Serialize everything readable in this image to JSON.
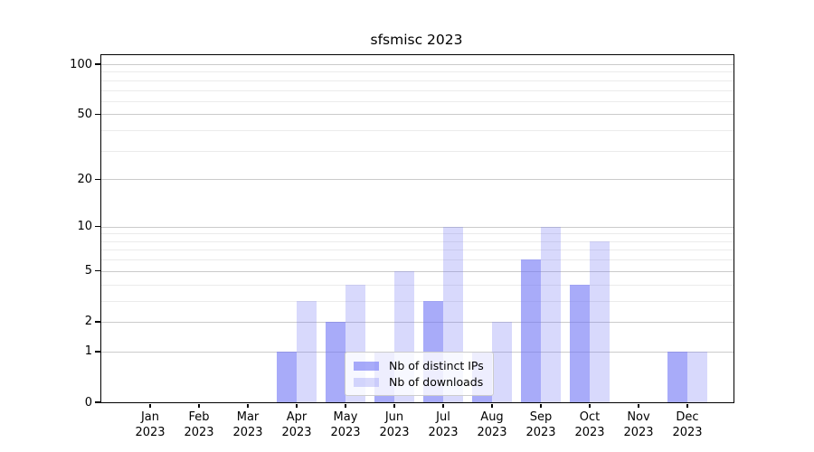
{
  "chart_data": {
    "type": "bar",
    "title": "sfsmisc 2023",
    "scale": "log1p",
    "ylim": [
      0,
      110
    ],
    "xlabel": "",
    "ylabel": "",
    "grid": {
      "major_color": "#cbcbcb",
      "minor_color": "#ebebeb",
      "minor_values": [
        3,
        4,
        6,
        7,
        8,
        9,
        30,
        40,
        60,
        70,
        80,
        90
      ]
    },
    "y_ticks": [
      100,
      50,
      20,
      10,
      5,
      2,
      1,
      0
    ],
    "categories": [
      {
        "label": "Jan",
        "sub": "2023"
      },
      {
        "label": "Feb",
        "sub": "2023"
      },
      {
        "label": "Mar",
        "sub": "2023"
      },
      {
        "label": "Apr",
        "sub": "2023"
      },
      {
        "label": "May",
        "sub": "2023"
      },
      {
        "label": "Jun",
        "sub": "2023"
      },
      {
        "label": "Jul",
        "sub": "2023"
      },
      {
        "label": "Aug",
        "sub": "2023"
      },
      {
        "label": "Sep",
        "sub": "2023"
      },
      {
        "label": "Oct",
        "sub": "2023"
      },
      {
        "label": "Nov",
        "sub": "2023"
      },
      {
        "label": "Dec",
        "sub": "2023"
      }
    ],
    "series": [
      {
        "name": "Nb of distinct IPs",
        "key": "distinct-ips",
        "color": "rgba(110,115,245,0.60)",
        "values": [
          0,
          0,
          0,
          1,
          2,
          1,
          3,
          1,
          6,
          4,
          0,
          1
        ]
      },
      {
        "name": "Nb of downloads",
        "key": "downloads",
        "color": "rgba(110,115,245,0.27)",
        "values": [
          0,
          0,
          0,
          3,
          4,
          5,
          10,
          2,
          10,
          8,
          0,
          1
        ]
      }
    ],
    "legend": {
      "position": "bottom-center"
    }
  }
}
